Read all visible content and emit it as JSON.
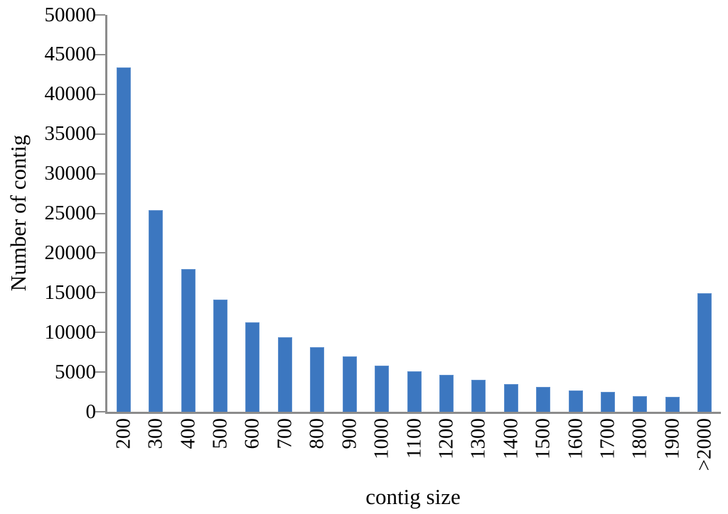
{
  "chart_data": {
    "type": "bar",
    "title": "",
    "xlabel": "contig size",
    "ylabel": "Number of contig",
    "categories": [
      "200",
      "300",
      "400",
      "500",
      "600",
      "700",
      "800",
      "900",
      "1000",
      "1100",
      "1200",
      "1300",
      "1400",
      "1500",
      "1600",
      "1700",
      "1800",
      "1900",
      ">2000"
    ],
    "values": [
      43400,
      25400,
      18000,
      14100,
      11300,
      9400,
      8100,
      7000,
      5800,
      5100,
      4650,
      4000,
      3450,
      3100,
      2700,
      2500,
      2000,
      1850,
      14900
    ],
    "ylim": [
      0,
      50000
    ],
    "ytick_step": 5000,
    "ytick_labels": [
      "0",
      "5000",
      "10000",
      "15000",
      "20000",
      "25000",
      "30000",
      "35000",
      "40000",
      "45000",
      "50000"
    ],
    "grid": false,
    "legend": null,
    "bar_color": "#3c77c0",
    "axis_color": "#8c8c8c"
  }
}
